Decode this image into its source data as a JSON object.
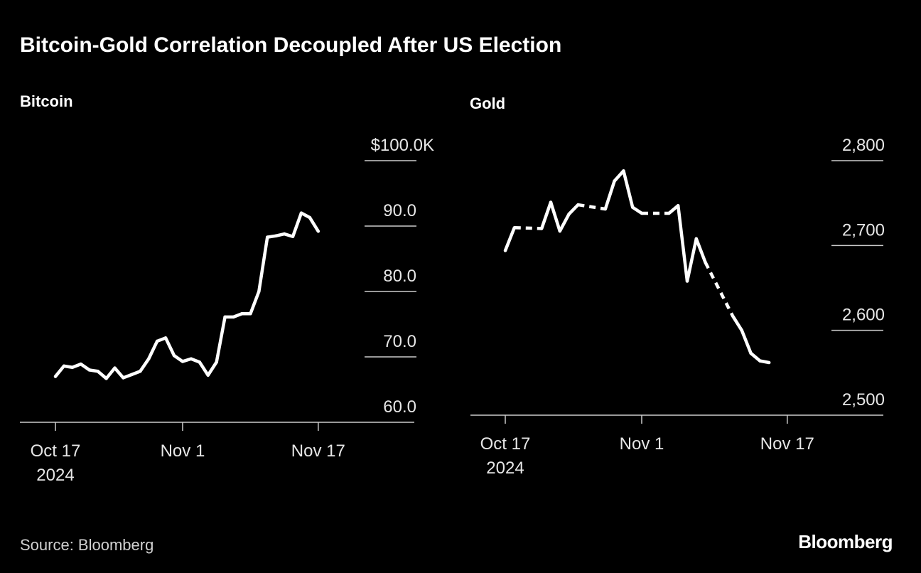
{
  "title": "Bitcoin-Gold Correlation Decoupled After US Election",
  "source": "Source: Bloomberg",
  "logo": "Bloomberg",
  "colors": {
    "background": "#000000",
    "line": "#ffffff",
    "axis": "#cccccc"
  },
  "chart_data": [
    {
      "type": "line",
      "title": "Bitcoin",
      "x_ticks": [
        "Oct 17",
        "Nov 1",
        "Nov 17"
      ],
      "x_tick_sublabel": "2024",
      "y_ticks": [
        "$100.0K",
        "90.0",
        "80.0",
        "70.0",
        "60.0"
      ],
      "y_tick_values": [
        100,
        90,
        80,
        70,
        60
      ],
      "ylim": [
        60,
        100
      ],
      "y_unit": "thousand USD",
      "y_axis_side": "right",
      "grid": "horizontal, right side only",
      "x": [
        "2024-10-17",
        "2024-10-18",
        "2024-10-19",
        "2024-10-20",
        "2024-10-21",
        "2024-10-22",
        "2024-10-23",
        "2024-10-24",
        "2024-10-25",
        "2024-10-26",
        "2024-10-27",
        "2024-10-28",
        "2024-10-29",
        "2024-10-30",
        "2024-10-31",
        "2024-11-01",
        "2024-11-02",
        "2024-11-03",
        "2024-11-04",
        "2024-11-05",
        "2024-11-06",
        "2024-11-07",
        "2024-11-08",
        "2024-11-09",
        "2024-11-10",
        "2024-11-11",
        "2024-11-12",
        "2024-11-13",
        "2024-11-14",
        "2024-11-15",
        "2024-11-16",
        "2024-11-17"
      ],
      "values": [
        67.0,
        68.6,
        68.4,
        68.9,
        68.0,
        67.8,
        66.7,
        68.3,
        66.8,
        67.3,
        67.8,
        69.7,
        72.4,
        72.9,
        70.2,
        69.3,
        69.7,
        69.2,
        67.2,
        69.2,
        76.1,
        76.1,
        76.6,
        76.6,
        80.0,
        88.3,
        88.5,
        88.8,
        88.4,
        92.0,
        91.3,
        89.2
      ]
    },
    {
      "type": "line",
      "title": "Gold",
      "x_ticks": [
        "Oct 17",
        "Nov 1",
        "Nov 17"
      ],
      "x_tick_sublabel": "2024",
      "y_ticks": [
        "2,800",
        "2,700",
        "2,600",
        "2,500"
      ],
      "y_tick_values": [
        2800,
        2700,
        2600,
        2500
      ],
      "ylim": [
        2500,
        2800
      ],
      "y_axis_side": "right",
      "grid": "horizontal, right side only",
      "gaps_style": "dashed across non-trading days",
      "x": [
        "2024-10-17",
        "2024-10-18",
        "2024-10-21",
        "2024-10-22",
        "2024-10-23",
        "2024-10-24",
        "2024-10-25",
        "2024-10-28",
        "2024-10-29",
        "2024-10-30",
        "2024-10-31",
        "2024-11-01",
        "2024-11-04",
        "2024-11-05",
        "2024-11-06",
        "2024-11-07",
        "2024-11-08",
        "2024-11-11",
        "2024-11-12",
        "2024-11-13",
        "2024-11-14",
        "2024-11-15"
      ],
      "values": [
        2694,
        2721,
        2720,
        2751,
        2717,
        2737,
        2748,
        2743,
        2776,
        2788,
        2745,
        2738,
        2738,
        2747,
        2658,
        2708,
        2680,
        2617,
        2600,
        2573,
        2564,
        2562
      ]
    }
  ]
}
